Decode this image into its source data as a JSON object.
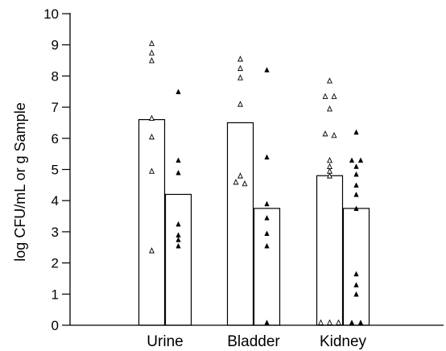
{
  "chart_data": {
    "type": "bar",
    "title": "",
    "xlabel": "",
    "ylabel": "log CFU/mL or g Sample",
    "ylim": [
      0,
      10
    ],
    "yticks": [
      0,
      1,
      2,
      3,
      4,
      5,
      6,
      7,
      8,
      9,
      10
    ],
    "ytick_labels": [
      "0",
      "1",
      "2",
      "3",
      "4",
      "5",
      "6",
      "7",
      "8",
      "9",
      "10"
    ],
    "grid": false,
    "legend": null,
    "categories": [
      "Urine",
      "Bladder",
      "Kidney"
    ],
    "series": [
      {
        "marker": "open-triangle",
        "bar_fill": "#ffffff",
        "values": [
          6.6,
          6.5,
          4.8
        ],
        "points": [
          [
            9.05,
            8.75,
            8.5,
            6.65,
            6.05,
            4.95,
            2.4
          ],
          [
            8.55,
            8.25,
            7.95,
            7.1,
            4.8,
            4.6,
            4.55
          ],
          [
            7.85,
            7.35,
            7.35,
            6.95,
            6.15,
            6.1,
            5.3,
            5.1,
            4.95,
            4.8,
            0.05,
            0.05,
            0.05
          ]
        ]
      },
      {
        "marker": "filled-triangle",
        "bar_fill": "#ffffff",
        "values": [
          4.2,
          3.75,
          3.75
        ],
        "points": [
          [
            7.5,
            5.3,
            4.9,
            3.25,
            2.9,
            2.75,
            2.55
          ],
          [
            8.2,
            5.4,
            3.9,
            3.45,
            2.95,
            2.55,
            0.05
          ],
          [
            6.2,
            5.3,
            5.3,
            5.1,
            4.85,
            4.5,
            4.2,
            3.75,
            1.65,
            1.3,
            1.0,
            0.05,
            0.05
          ]
        ]
      }
    ],
    "colors": {
      "ink": "#000000",
      "background": "#ffffff"
    }
  }
}
